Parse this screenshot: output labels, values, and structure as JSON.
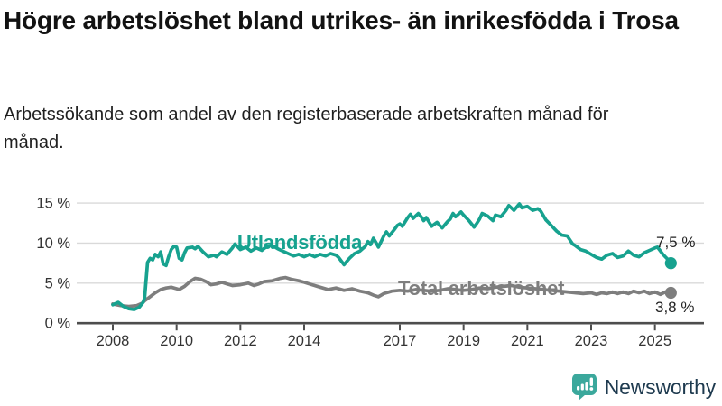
{
  "header": {
    "title": "Högre arbetslöshet bland utrikes- än inrikesfödda i Trosa",
    "subtitle": "Arbetssökande som andel av den registerbaserade arbetskraften månad för månad."
  },
  "chart_data": {
    "type": "line",
    "title": "Högre arbetslöshet bland utrikes- än inrikesfödda i Trosa",
    "subtitle": "Arbetssökande som andel av den registerbaserade arbetskraften månad för månad.",
    "unit": "%",
    "grid": "horizontal",
    "legend_position": "inline-labels-on-lines",
    "x_ticks": [
      2008,
      2010,
      2012,
      2014,
      2017,
      2019,
      2021,
      2023,
      2025
    ],
    "xlim": [
      2006.9,
      2026.8
    ],
    "y_ticks": [
      {
        "v": 0,
        "label": "0 %"
      },
      {
        "v": 5,
        "label": "5 %"
      },
      {
        "v": 10,
        "label": "10 %"
      },
      {
        "v": 15,
        "label": "15 %"
      }
    ],
    "ylim": [
      0,
      15
    ],
    "axis_color": "#4d4d4d",
    "gridline_color": "#d9d9d9",
    "tick_label_color": "#333333",
    "series": [
      {
        "name": "Utlandsfödda",
        "color": "#17A28F",
        "end_label": "7,5 %",
        "end_value": 7.5,
        "points": [
          [
            2008.0,
            2.3
          ],
          [
            2008.17,
            2.6
          ],
          [
            2008.33,
            2.1
          ],
          [
            2008.5,
            1.8
          ],
          [
            2008.67,
            1.7
          ],
          [
            2008.83,
            2.0
          ],
          [
            2008.95,
            2.6
          ],
          [
            2009.0,
            3.2
          ],
          [
            2009.09,
            7.6
          ],
          [
            2009.17,
            8.1
          ],
          [
            2009.25,
            7.9
          ],
          [
            2009.33,
            8.6
          ],
          [
            2009.42,
            8.3
          ],
          [
            2009.5,
            8.9
          ],
          [
            2009.58,
            7.4
          ],
          [
            2009.67,
            7.2
          ],
          [
            2009.75,
            8.3
          ],
          [
            2009.83,
            9.2
          ],
          [
            2009.92,
            9.6
          ],
          [
            2010.0,
            9.5
          ],
          [
            2010.08,
            8.1
          ],
          [
            2010.17,
            7.9
          ],
          [
            2010.25,
            8.8
          ],
          [
            2010.33,
            9.4
          ],
          [
            2010.5,
            9.5
          ],
          [
            2010.58,
            9.3
          ],
          [
            2010.67,
            9.6
          ],
          [
            2010.83,
            8.9
          ],
          [
            2011.0,
            8.3
          ],
          [
            2011.17,
            8.5
          ],
          [
            2011.25,
            8.3
          ],
          [
            2011.42,
            8.9
          ],
          [
            2011.58,
            8.6
          ],
          [
            2011.75,
            9.4
          ],
          [
            2011.83,
            9.9
          ],
          [
            2012.0,
            9.2
          ],
          [
            2012.17,
            9.5
          ],
          [
            2012.33,
            9.0
          ],
          [
            2012.5,
            9.4
          ],
          [
            2012.67,
            9.1
          ],
          [
            2012.83,
            9.6
          ],
          [
            2013.0,
            9.7
          ],
          [
            2013.17,
            9.3
          ],
          [
            2013.33,
            9.0
          ],
          [
            2013.5,
            8.7
          ],
          [
            2013.67,
            8.4
          ],
          [
            2013.83,
            8.6
          ],
          [
            2014.0,
            8.3
          ],
          [
            2014.17,
            8.6
          ],
          [
            2014.33,
            8.3
          ],
          [
            2014.5,
            8.6
          ],
          [
            2014.67,
            8.4
          ],
          [
            2014.83,
            8.7
          ],
          [
            2015.0,
            8.5
          ],
          [
            2015.08,
            8.2
          ],
          [
            2015.25,
            7.3
          ],
          [
            2015.42,
            8.1
          ],
          [
            2015.58,
            8.7
          ],
          [
            2015.75,
            9.0
          ],
          [
            2015.92,
            9.6
          ],
          [
            2016.0,
            10.2
          ],
          [
            2016.08,
            9.8
          ],
          [
            2016.17,
            10.6
          ],
          [
            2016.25,
            10.1
          ],
          [
            2016.33,
            9.5
          ],
          [
            2016.5,
            10.9
          ],
          [
            2016.58,
            11.4
          ],
          [
            2016.67,
            10.9
          ],
          [
            2016.83,
            11.7
          ],
          [
            2016.92,
            12.2
          ],
          [
            2017.0,
            12.4
          ],
          [
            2017.08,
            12.1
          ],
          [
            2017.25,
            13.2
          ],
          [
            2017.33,
            13.6
          ],
          [
            2017.42,
            13.1
          ],
          [
            2017.58,
            13.7
          ],
          [
            2017.67,
            13.3
          ],
          [
            2017.75,
            12.8
          ],
          [
            2017.83,
            13.2
          ],
          [
            2018.0,
            12.1
          ],
          [
            2018.17,
            12.6
          ],
          [
            2018.25,
            12.2
          ],
          [
            2018.33,
            11.9
          ],
          [
            2018.5,
            12.7
          ],
          [
            2018.58,
            13.0
          ],
          [
            2018.67,
            13.7
          ],
          [
            2018.75,
            13.3
          ],
          [
            2018.92,
            13.9
          ],
          [
            2019.0,
            13.5
          ],
          [
            2019.17,
            12.8
          ],
          [
            2019.33,
            12.0
          ],
          [
            2019.42,
            12.5
          ],
          [
            2019.5,
            13.0
          ],
          [
            2019.58,
            13.7
          ],
          [
            2019.75,
            13.4
          ],
          [
            2019.92,
            12.8
          ],
          [
            2020.0,
            13.5
          ],
          [
            2020.17,
            13.3
          ],
          [
            2020.33,
            14.1
          ],
          [
            2020.42,
            14.7
          ],
          [
            2020.58,
            14.1
          ],
          [
            2020.75,
            14.9
          ],
          [
            2020.83,
            14.4
          ],
          [
            2021.0,
            14.6
          ],
          [
            2021.17,
            14.1
          ],
          [
            2021.33,
            14.3
          ],
          [
            2021.42,
            14.0
          ],
          [
            2021.58,
            12.9
          ],
          [
            2021.75,
            12.2
          ],
          [
            2021.92,
            11.5
          ],
          [
            2022.08,
            11.0
          ],
          [
            2022.25,
            10.9
          ],
          [
            2022.42,
            9.9
          ],
          [
            2022.5,
            9.7
          ],
          [
            2022.67,
            9.2
          ],
          [
            2022.83,
            9.0
          ],
          [
            2023.0,
            8.6
          ],
          [
            2023.17,
            8.2
          ],
          [
            2023.33,
            8.0
          ],
          [
            2023.5,
            8.5
          ],
          [
            2023.67,
            8.7
          ],
          [
            2023.83,
            8.2
          ],
          [
            2024.0,
            8.4
          ],
          [
            2024.17,
            9.0
          ],
          [
            2024.33,
            8.5
          ],
          [
            2024.5,
            8.3
          ],
          [
            2024.67,
            8.8
          ],
          [
            2024.83,
            9.1
          ],
          [
            2025.0,
            9.4
          ],
          [
            2025.08,
            9.5
          ],
          [
            2025.25,
            8.6
          ],
          [
            2025.42,
            7.9
          ],
          [
            2025.5,
            7.5
          ]
        ]
      },
      {
        "name": "Total arbetslöshet",
        "color": "#7E7E7E",
        "end_label": "3,8 %",
        "end_value": 3.8,
        "points": [
          [
            2008.0,
            2.4
          ],
          [
            2008.25,
            2.2
          ],
          [
            2008.5,
            2.1
          ],
          [
            2008.75,
            2.2
          ],
          [
            2008.92,
            2.5
          ],
          [
            2009.0,
            2.8
          ],
          [
            2009.17,
            3.3
          ],
          [
            2009.33,
            3.8
          ],
          [
            2009.5,
            4.2
          ],
          [
            2009.67,
            4.4
          ],
          [
            2009.83,
            4.5
          ],
          [
            2010.0,
            4.3
          ],
          [
            2010.08,
            4.2
          ],
          [
            2010.25,
            4.6
          ],
          [
            2010.42,
            5.2
          ],
          [
            2010.58,
            5.6
          ],
          [
            2010.75,
            5.5
          ],
          [
            2010.92,
            5.2
          ],
          [
            2011.08,
            4.8
          ],
          [
            2011.25,
            4.9
          ],
          [
            2011.42,
            5.1
          ],
          [
            2011.58,
            4.9
          ],
          [
            2011.75,
            4.7
          ],
          [
            2012.0,
            4.8
          ],
          [
            2012.25,
            5.0
          ],
          [
            2012.42,
            4.7
          ],
          [
            2012.58,
            4.9
          ],
          [
            2012.75,
            5.2
          ],
          [
            2013.0,
            5.3
          ],
          [
            2013.25,
            5.6
          ],
          [
            2013.42,
            5.7
          ],
          [
            2013.58,
            5.5
          ],
          [
            2013.83,
            5.3
          ],
          [
            2014.0,
            5.1
          ],
          [
            2014.25,
            4.8
          ],
          [
            2014.5,
            4.5
          ],
          [
            2014.75,
            4.2
          ],
          [
            2015.0,
            4.4
          ],
          [
            2015.25,
            4.1
          ],
          [
            2015.5,
            4.3
          ],
          [
            2015.75,
            4.0
          ],
          [
            2016.0,
            3.8
          ],
          [
            2016.17,
            3.5
          ],
          [
            2016.33,
            3.3
          ],
          [
            2016.5,
            3.7
          ],
          [
            2016.75,
            4.0
          ],
          [
            2017.0,
            4.1
          ],
          [
            2017.25,
            4.0
          ],
          [
            2017.5,
            4.2
          ],
          [
            2017.75,
            4.1
          ],
          [
            2018.0,
            4.0
          ],
          [
            2018.25,
            4.1
          ],
          [
            2018.5,
            4.3
          ],
          [
            2018.75,
            4.2
          ],
          [
            2019.0,
            4.1
          ],
          [
            2019.25,
            4.2
          ],
          [
            2019.5,
            4.4
          ],
          [
            2019.75,
            4.3
          ],
          [
            2020.0,
            4.5
          ],
          [
            2020.25,
            4.6
          ],
          [
            2020.5,
            4.7
          ],
          [
            2020.75,
            4.5
          ],
          [
            2021.0,
            4.4
          ],
          [
            2021.25,
            4.3
          ],
          [
            2021.5,
            4.2
          ],
          [
            2021.75,
            4.1
          ],
          [
            2022.0,
            4.0
          ],
          [
            2022.25,
            3.9
          ],
          [
            2022.5,
            3.8
          ],
          [
            2022.75,
            3.7
          ],
          [
            2023.0,
            3.8
          ],
          [
            2023.17,
            3.6
          ],
          [
            2023.33,
            3.8
          ],
          [
            2023.5,
            3.7
          ],
          [
            2023.67,
            3.9
          ],
          [
            2023.83,
            3.7
          ],
          [
            2024.0,
            3.9
          ],
          [
            2024.17,
            3.7
          ],
          [
            2024.33,
            4.0
          ],
          [
            2024.5,
            3.8
          ],
          [
            2024.67,
            4.0
          ],
          [
            2024.83,
            3.7
          ],
          [
            2025.0,
            3.9
          ],
          [
            2025.17,
            3.6
          ],
          [
            2025.33,
            3.9
          ],
          [
            2025.5,
            3.8
          ]
        ]
      }
    ]
  },
  "footer": {
    "brand": "Newsworthy",
    "brand_icon": "newsworthy-chart-bubble-icon",
    "icon_color": "#3BA89C",
    "brand_text_color": "#1E3A4F"
  }
}
